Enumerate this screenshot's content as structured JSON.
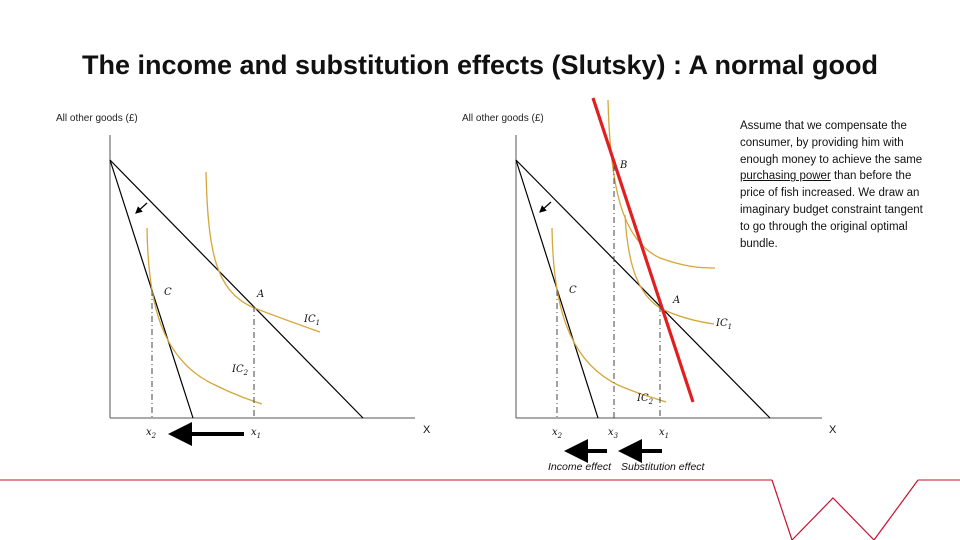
{
  "title": "The income and substitution effects (Slutsky) : A normal good",
  "left_diagram": {
    "y_axis_label": "All other goods (£)",
    "x_axis_label": "X",
    "points": {
      "a": "A",
      "c": "C"
    },
    "curves": {
      "ic1": "IC",
      "ic1_sub": "1",
      "ic2": "IC",
      "ic2_sub": "2"
    },
    "ticks": {
      "x2": "x",
      "x2_sub": "2",
      "x1": "x",
      "x1_sub": "1"
    }
  },
  "right_diagram": {
    "y_axis_label": "All other goods (£)",
    "x_axis_label": "X",
    "points": {
      "a": "A",
      "b": "B",
      "c": "C"
    },
    "curves": {
      "ic1": "IC",
      "ic1_sub": "1",
      "ic2": "IC",
      "ic2_sub": "2"
    },
    "ticks": {
      "x2": "x",
      "x2_sub": "2",
      "x3": "x",
      "x3_sub": "3",
      "x1": "x",
      "x1_sub": "1"
    }
  },
  "note": {
    "before": "Assume that we compensate the consumer, by providing him with enough money to achieve the same ",
    "underlined": "purchasing power",
    "after": " than before the price of fish increased. We draw an imaginary budget constraint tangent to go through the original optimal bundle."
  },
  "effects": {
    "income": "Income effect",
    "substitution": "Substitution effect"
  },
  "colors": {
    "indifference_curve": "#d4a73a",
    "compensated_budget_line": "#e02020",
    "brand_footer": "#c8102e",
    "budget_line": "#000000"
  },
  "icons": [
    "brand-w-logo-icon",
    "left-arrow-icon",
    "shift-arrow-icon"
  ]
}
